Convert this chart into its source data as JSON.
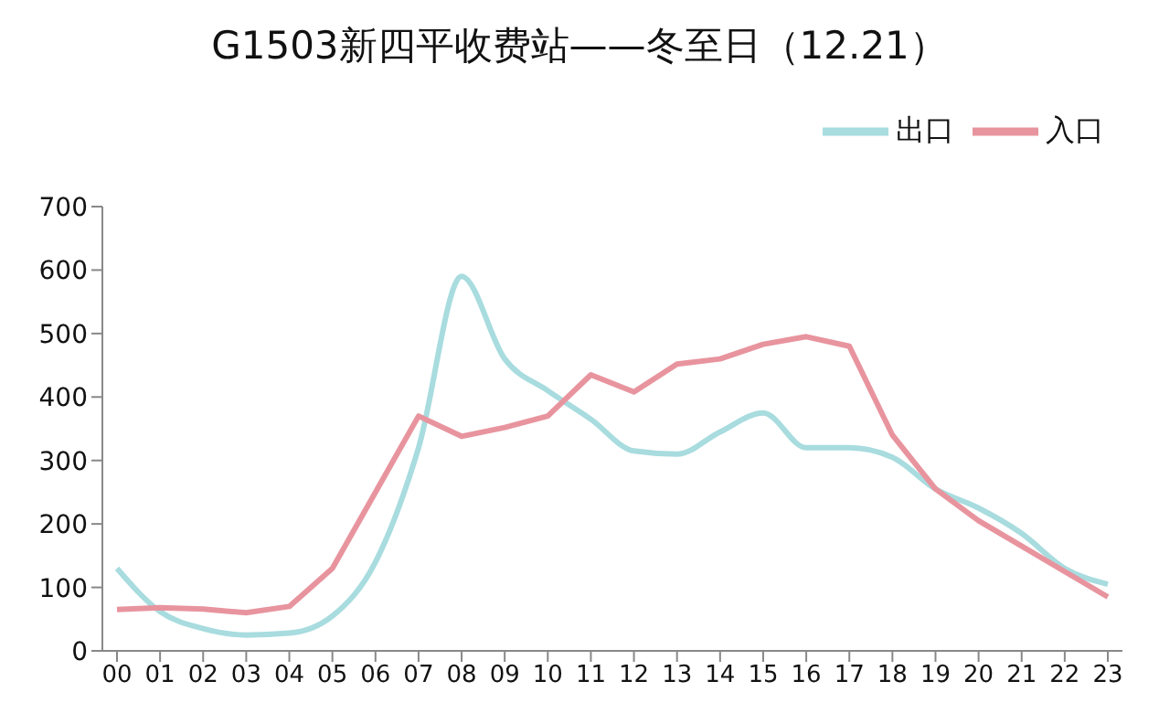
{
  "chart_data": {
    "type": "line",
    "title": "G1503新四平收费站——冬至日（12.21）",
    "categories": [
      "00",
      "01",
      "02",
      "03",
      "04",
      "05",
      "06",
      "07",
      "08",
      "09",
      "10",
      "11",
      "12",
      "13",
      "14",
      "15",
      "16",
      "17",
      "18",
      "19",
      "20",
      "21",
      "22",
      "23"
    ],
    "series": [
      {
        "name": "出口",
        "color": "#a8dcdf",
        "values": [
          130,
          62,
          35,
          25,
          28,
          55,
          140,
          320,
          590,
          460,
          410,
          365,
          315,
          310,
          345,
          375,
          320,
          320,
          305,
          255,
          225,
          185,
          130,
          105
        ]
      },
      {
        "name": "入口",
        "color": "#e8949e",
        "values": [
          65,
          68,
          66,
          60,
          70,
          130,
          250,
          370,
          338,
          352,
          370,
          435,
          408,
          452,
          460,
          483,
          495,
          480,
          340,
          255,
          205,
          165,
          125,
          85
        ]
      }
    ],
    "ylim": [
      0,
      700
    ],
    "yticks": [
      0,
      100,
      200,
      300,
      400,
      500,
      600,
      700
    ],
    "grid": false,
    "legend": "top right",
    "marker": "none",
    "line_style": "solid"
  }
}
